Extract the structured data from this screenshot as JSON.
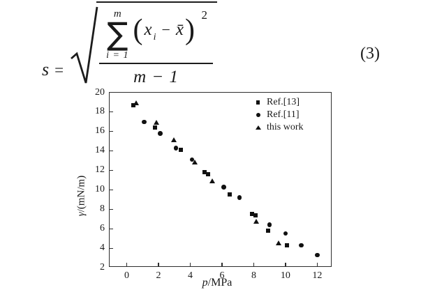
{
  "equation": {
    "lhs_var": "s",
    "rel": "=",
    "sum_upper": "m",
    "sigma": "∑",
    "sum_lower": "i = 1",
    "lparen": "(",
    "base_var": "x",
    "base_sub": "i",
    "op": "−",
    "mean_var": "x̄",
    "rparen": ")",
    "power": "2",
    "denominator": "m − 1",
    "eq_number": "(3)"
  },
  "chart": {
    "ylabel_var": "γ",
    "ylabel_rest": "/(mN/m)",
    "xlabel_var": "p",
    "xlabel_rest": "/MPa",
    "ink_color": "#111111",
    "axis_color": "#2d2d2d"
  },
  "chart_data": {
    "type": "scatter",
    "title": "",
    "xlabel": "p/MPa",
    "ylabel": "γ/(mN/m)",
    "xlim": [
      -1.08,
      12.95
    ],
    "ylim": [
      2,
      20
    ],
    "xticks": [
      0,
      2,
      4,
      6,
      8,
      10,
      12
    ],
    "yticks": [
      2,
      4,
      6,
      8,
      10,
      12,
      14,
      16,
      18,
      20
    ],
    "grid": false,
    "legend_position": "top-right",
    "series": [
      {
        "name": "Ref.[13]",
        "marker": "square",
        "points": [
          [
            0.4,
            18.7
          ],
          [
            1.8,
            16.4
          ],
          [
            3.4,
            14.1
          ],
          [
            4.9,
            11.8
          ],
          [
            5.1,
            11.6
          ],
          [
            6.5,
            9.5
          ],
          [
            7.9,
            7.5
          ],
          [
            8.1,
            7.4
          ],
          [
            8.9,
            5.8
          ],
          [
            10.1,
            4.3
          ]
        ]
      },
      {
        "name": "Ref.[11]",
        "marker": "circle",
        "points": [
          [
            1.1,
            17.0
          ],
          [
            2.1,
            15.8
          ],
          [
            3.1,
            14.3
          ],
          [
            4.1,
            13.1
          ],
          [
            6.1,
            10.3
          ],
          [
            7.1,
            9.2
          ],
          [
            9.0,
            6.4
          ],
          [
            10.0,
            5.5
          ],
          [
            11.0,
            4.3
          ],
          [
            12.0,
            3.3
          ]
        ]
      },
      {
        "name": "this work",
        "marker": "triangle",
        "points": [
          [
            0.6,
            18.9
          ],
          [
            1.9,
            16.9
          ],
          [
            3.0,
            15.1
          ],
          [
            4.3,
            12.8
          ],
          [
            5.4,
            10.9
          ],
          [
            8.2,
            6.7
          ],
          [
            9.6,
            4.5
          ]
        ]
      }
    ]
  }
}
